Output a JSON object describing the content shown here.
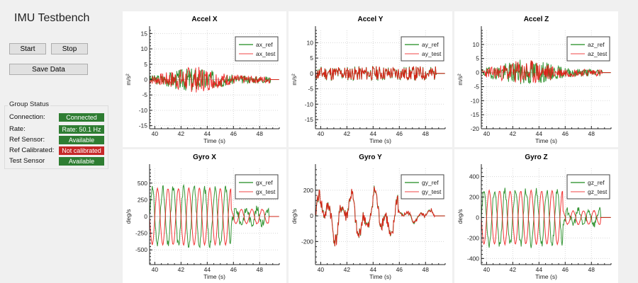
{
  "app": {
    "title": "IMU Testbench"
  },
  "controls": {
    "start_label": "Start",
    "stop_label": "Stop",
    "save_label": "Save Data"
  },
  "group_status": {
    "title": "Group Status",
    "rows": [
      {
        "label": "Connection:",
        "value": "Connected",
        "color": "#2e7d32"
      },
      {
        "label": "Rate:",
        "value": "Rate: 50.1 Hz",
        "color": "#2e7d32"
      },
      {
        "label": "Ref Sensor:",
        "value": "Available",
        "color": "#2e7d32"
      },
      {
        "label": "Ref Calibrated:",
        "value": "Not calibrated",
        "color": "#c62828"
      },
      {
        "label": "Test Sensor",
        "value": "Available",
        "color": "#2e7d32"
      }
    ]
  },
  "colors": {
    "ref": "#1f8a1f",
    "test": "#ee1111",
    "test_light": "#f46b6b"
  },
  "chart_data": [
    {
      "type": "line",
      "title": "Accel X",
      "xlabel": "Time (s)",
      "ylabel": "m/s²",
      "xlim": [
        39.6,
        49.5
      ],
      "ylim": [
        -16,
        16
      ],
      "xticks": [
        40,
        42,
        44,
        46,
        48
      ],
      "yticks": [
        15,
        10,
        5,
        0,
        -5,
        -10,
        -15
      ],
      "yticklabels": [
        "15",
        "10",
        "5",
        "0",
        "-5",
        "-10",
        "-15"
      ],
      "legend": "top-right",
      "grid": true,
      "series": [
        {
          "name": "ax_ref",
          "amp": 3.2,
          "seed": 3,
          "env": "burst",
          "end": 48.8
        },
        {
          "name": "ax_test",
          "amp": 3.4,
          "seed": 7,
          "env": "burst",
          "end": 48.8
        }
      ]
    },
    {
      "type": "line",
      "title": "Accel Y",
      "xlabel": "Time (s)",
      "ylabel": "m/s²",
      "xlim": [
        39.6,
        49.5
      ],
      "ylim": [
        -18,
        14
      ],
      "xticks": [
        40,
        42,
        44,
        46,
        48
      ],
      "yticks": [
        10,
        5,
        0,
        -5,
        -10,
        -15
      ],
      "yticklabels": [
        "10",
        "5",
        "0",
        "-5",
        "-10",
        "-15"
      ],
      "legend": "top-right",
      "grid": true,
      "series": [
        {
          "name": "ay_ref",
          "amp": 3.0,
          "seed": 11,
          "env": "flat",
          "end": 48.8
        },
        {
          "name": "ay_test",
          "amp": 3.0,
          "seed": 11,
          "env": "flat",
          "end": 48.8,
          "follow": true
        }
      ]
    },
    {
      "type": "line",
      "title": "Accel Z",
      "xlabel": "Time (s)",
      "ylabel": "m/s²",
      "xlim": [
        39.6,
        49.5
      ],
      "ylim": [
        -20,
        15
      ],
      "xticks": [
        40,
        42,
        44,
        46,
        48
      ],
      "yticks": [
        10,
        5,
        0,
        -5,
        -10,
        -15,
        -20
      ],
      "yticklabels": [
        "10",
        "5",
        "0",
        "-5",
        "-10",
        "-15",
        "-20"
      ],
      "legend": "top-right",
      "grid": true,
      "series": [
        {
          "name": "az_ref",
          "amp": 3.8,
          "seed": 19,
          "env": "burst",
          "end": 48.8
        },
        {
          "name": "az_test",
          "amp": 3.6,
          "seed": 23,
          "env": "burst",
          "end": 48.8
        }
      ]
    },
    {
      "type": "line",
      "title": "Gyro X",
      "xlabel": "Time (s)",
      "ylabel": "deg/s",
      "xlim": [
        39.6,
        49.5
      ],
      "ylim": [
        -720,
        720
      ],
      "xticks": [
        40,
        42,
        44,
        46,
        48
      ],
      "yticks": [
        500,
        250,
        0,
        -250,
        -500
      ],
      "yticklabels": [
        "500",
        "250",
        "0",
        "-250",
        "-500"
      ],
      "legend": "top-right",
      "grid": true,
      "series": [
        {
          "name": "gx_ref",
          "amp": 420,
          "seed": 31,
          "env": "osc",
          "end": 48.7
        },
        {
          "name": "gx_test",
          "amp": 420,
          "seed": 31,
          "env": "osc",
          "end": 48.7,
          "invert": true
        }
      ]
    },
    {
      "type": "line",
      "title": "Gyro Y",
      "xlabel": "Time (s)",
      "ylabel": "deg/s",
      "xlim": [
        39.6,
        49.5
      ],
      "ylim": [
        -380,
        370
      ],
      "xticks": [
        40,
        42,
        44,
        46,
        48
      ],
      "yticks": [
        200,
        0,
        -200
      ],
      "yticklabels": [
        "200",
        "0",
        "-200"
      ],
      "legend": "top-right",
      "grid": true,
      "series": [
        {
          "name": "gy_ref",
          "amp": 180,
          "seed": 41,
          "env": "slow",
          "end": 48.7
        },
        {
          "name": "gy_test",
          "amp": 180,
          "seed": 41,
          "env": "slow",
          "end": 48.7,
          "follow": true
        }
      ]
    },
    {
      "type": "line",
      "title": "Gyro Z",
      "xlabel": "Time (s)",
      "ylabel": "deg/s",
      "xlim": [
        39.6,
        49.5
      ],
      "ylim": [
        -460,
        480
      ],
      "xticks": [
        40,
        42,
        44,
        46,
        48
      ],
      "yticks": [
        400,
        200,
        0,
        -200,
        -400
      ],
      "yticklabels": [
        "400",
        "200",
        "0",
        "-200",
        "-400"
      ],
      "legend": "top-right",
      "grid": true,
      "series": [
        {
          "name": "gz_ref",
          "amp": 260,
          "seed": 53,
          "env": "osc",
          "end": 48.7
        },
        {
          "name": "gz_test",
          "amp": 260,
          "seed": 53,
          "env": "osc",
          "end": 48.7,
          "invert": true
        }
      ]
    }
  ]
}
